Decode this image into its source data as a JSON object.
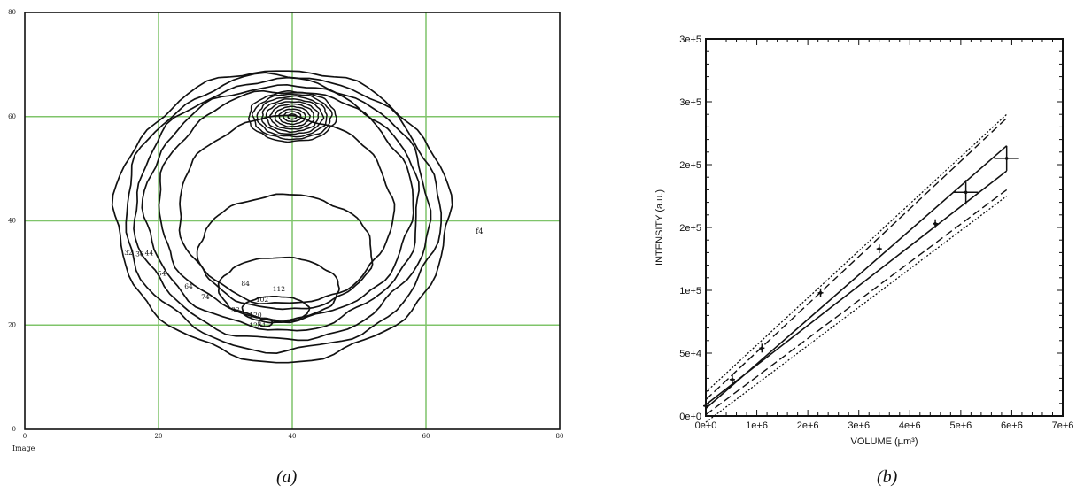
{
  "captions": {
    "a": "(a)",
    "b": "(b)"
  },
  "chart_data": [
    {
      "type": "contour",
      "panel": "(a)",
      "xlabel": "Image",
      "xlim": [
        0,
        80
      ],
      "ylim": [
        0,
        80
      ],
      "x_ticks": [
        "0",
        "20",
        "40",
        "60",
        "80"
      ],
      "y_ticks": [
        "0",
        "20",
        "40",
        "60",
        "80"
      ],
      "grid": true,
      "grid_color": "#7fc46a",
      "stray_label": "f4",
      "contour_labels": [
        "32",
        "36",
        "44",
        "54",
        "64",
        "74",
        "84",
        "92",
        "102",
        "112",
        "120",
        "126",
        "1"
      ],
      "contours": [
        {
          "center": [
            38.5,
            41.0
          ],
          "rx": 25.0,
          "ry": 28.0
        },
        {
          "center": [
            38.5,
            41.5
          ],
          "rx": 23.5,
          "ry": 26.5
        },
        {
          "center": [
            38.5,
            42.0
          ],
          "rx": 22.0,
          "ry": 25.0
        },
        {
          "center": [
            38.5,
            42.5
          ],
          "rx": 20.5,
          "ry": 23.5
        },
        {
          "center": [
            39.0,
            43.0
          ],
          "rx": 19.0,
          "ry": 22.0
        },
        {
          "center": [
            39.0,
            42.0
          ],
          "rx": 16.0,
          "ry": 18.0
        },
        {
          "center": [
            39.0,
            34.0
          ],
          "rx": 13.0,
          "ry": 11.0
        },
        {
          "center": [
            38.0,
            27.0
          ],
          "rx": 9.0,
          "ry": 6.0
        },
        {
          "center": [
            37.5,
            23.0
          ],
          "rx": 5.0,
          "ry": 2.5
        },
        {
          "center": [
            36.0,
            20.5
          ],
          "rx": 1.0,
          "ry": 0.8
        }
      ],
      "peak": {
        "center": [
          40.0,
          60.0
        ],
        "rings": 10,
        "rx_max": 6.5,
        "ry_max": 4.8
      }
    },
    {
      "type": "line",
      "panel": "(b)",
      "xlabel": "VOLUME (µm³)",
      "ylabel": "INTENSITY (a.u.)",
      "xlim": [
        0,
        7000000
      ],
      "ylim": [
        0,
        300000
      ],
      "x_ticks": [
        "0e+0",
        "1e+6",
        "2e+6",
        "3e+6",
        "4e+6",
        "5e+6",
        "6e+6",
        "7e+6"
      ],
      "y_ticks": [
        "0e+0",
        "5e+4",
        "1e+5",
        "2e+5",
        "2e+5",
        "3e+5",
        "3e+5"
      ],
      "points": [
        {
          "x": 0,
          "y": 8000
        },
        {
          "x": 520000,
          "y": 29000
        },
        {
          "x": 1100000,
          "y": 54000
        },
        {
          "x": 2250000,
          "y": 98000
        },
        {
          "x": 3400000,
          "y": 133000
        },
        {
          "x": 4500000,
          "y": 153000
        },
        {
          "x": 5100000,
          "y": 178000
        },
        {
          "x": 5900000,
          "y": 205000
        }
      ],
      "series": [
        {
          "name": "",
          "style": "solid",
          "x": [
            0,
            5900000
          ],
          "y": [
            6000,
            215000
          ]
        },
        {
          "name": "",
          "style": "solid",
          "x": [
            0,
            5900000
          ],
          "y": [
            9000,
            195000
          ]
        },
        {
          "name": "",
          "style": "dashed",
          "x": [
            0,
            5900000
          ],
          "y": [
            13000,
            237000
          ]
        },
        {
          "name": "",
          "style": "dashed",
          "x": [
            0,
            5900000
          ],
          "y": [
            1000,
            180000
          ]
        },
        {
          "name": "",
          "style": "dotted",
          "x": [
            0,
            5900000
          ],
          "y": [
            19000,
            240000
          ]
        },
        {
          "name": "",
          "style": "dotted",
          "x": [
            0,
            5900000
          ],
          "y": [
            -5000,
            175000
          ]
        }
      ]
    }
  ]
}
